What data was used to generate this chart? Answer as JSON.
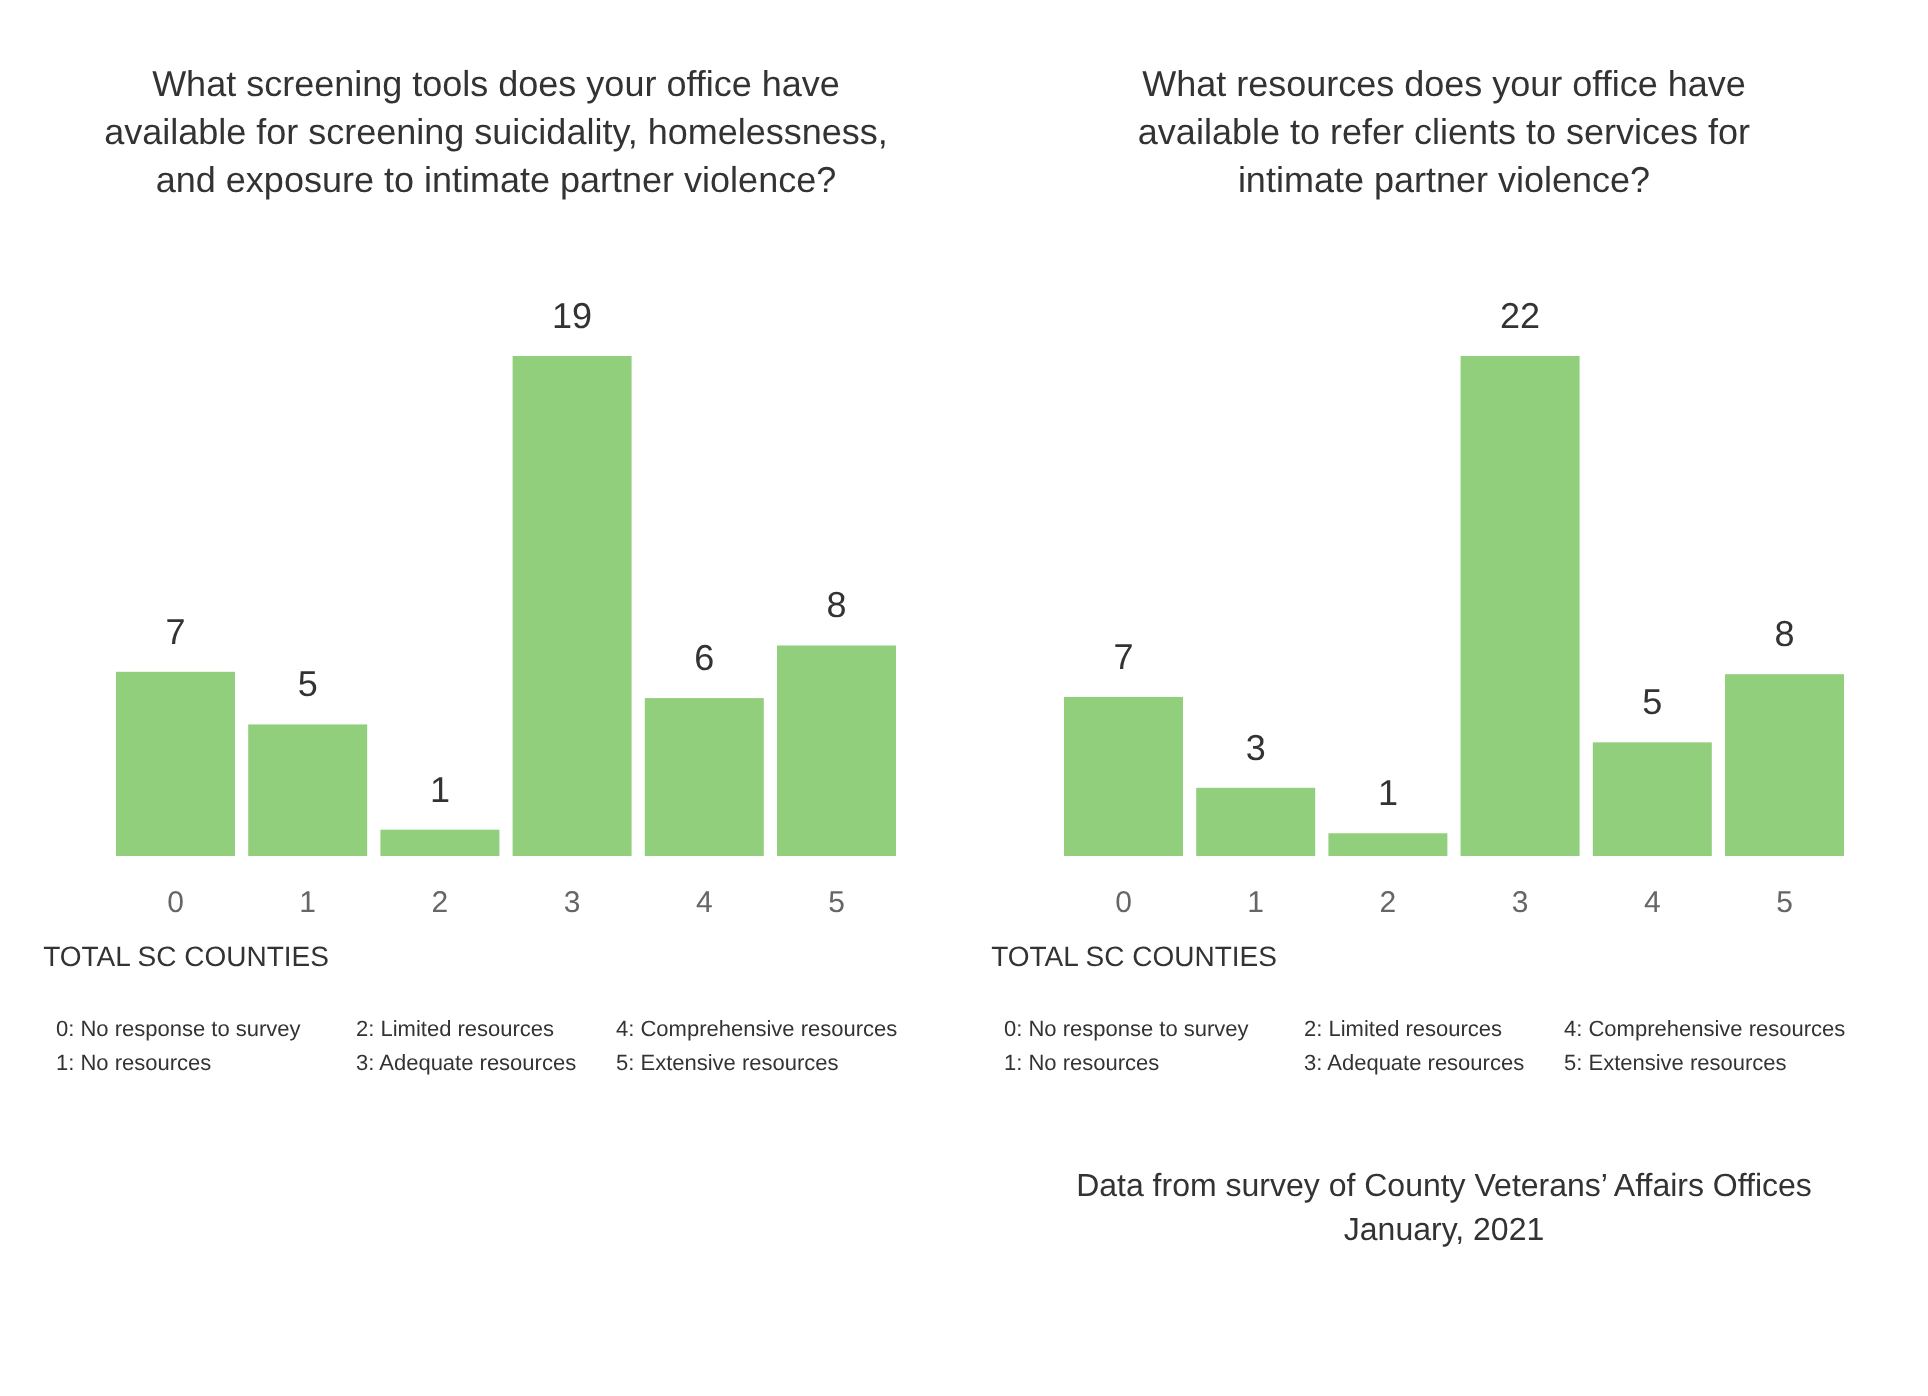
{
  "chart_data": [
    {
      "type": "bar",
      "title": "What screening tools does your office have\navailable for screening suicidality, homelessness,\nand exposure to intimate partner violence?",
      "ylabel": "TOTAL SC COUNTIES",
      "categories": [
        "0",
        "1",
        "2",
        "3",
        "4",
        "5"
      ],
      "values": [
        7,
        5,
        1,
        19,
        6,
        8
      ],
      "color": "#92cf7c",
      "data_labels": true,
      "annotations": [
        "0: No response to survey",
        "1: No resources",
        "2: Limited resources",
        "3: Adequate resources",
        "4: Comprehensive resources",
        "5: Extensive resources"
      ]
    },
    {
      "type": "bar",
      "title": "What resources does your office have\navailable to refer clients to services for\nintimate partner violence?",
      "ylabel": "TOTAL SC COUNTIES",
      "categories": [
        "0",
        "1",
        "2",
        "3",
        "4",
        "5"
      ],
      "values": [
        7,
        3,
        1,
        22,
        5,
        8
      ],
      "color": "#92cf7c",
      "data_labels": true,
      "annotations": [
        "0: No response to survey",
        "1: No resources",
        "2: Limited resources",
        "3: Adequate resources",
        "4: Comprehensive resources",
        "5: Extensive resources",
        "Data from survey of County Veterans’ Affairs Offices\nJanuary, 2021"
      ]
    }
  ]
}
